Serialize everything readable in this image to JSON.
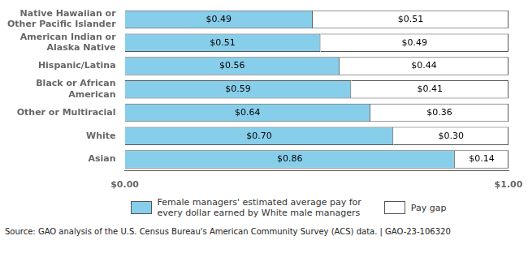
{
  "chart_data": {
    "type": "bar",
    "orientation": "horizontal",
    "stacked": true,
    "categories": [
      "Native Hawaiian or\nOther Pacific Islander",
      "American Indian or\nAlaska Native",
      "Hispanic/Latina",
      "Black or African\nAmerican",
      "Other or Multiracial",
      "White",
      "Asian"
    ],
    "series": [
      {
        "name": "Female managers' estimated average pay for\nevery dollar earned by White male managers",
        "color": "#87CEEB",
        "values": [
          0.49,
          0.51,
          0.56,
          0.59,
          0.64,
          0.7,
          0.86
        ],
        "value_labels": [
          "$0.49",
          "$0.51",
          "$0.56",
          "$0.59",
          "$0.64",
          "$0.70",
          "$0.86"
        ]
      },
      {
        "name": "Pay gap",
        "color": "#FFFFFF",
        "values": [
          0.51,
          0.49,
          0.44,
          0.41,
          0.36,
          0.3,
          0.14
        ],
        "value_labels": [
          "$0.51",
          "$0.49",
          "$0.44",
          "$0.41",
          "$0.36",
          "$0.30",
          "$0.14"
        ]
      }
    ],
    "xlim": [
      0.0,
      1.0
    ],
    "xticks": [
      {
        "value": 0.0,
        "label": "$0.00"
      },
      {
        "value": 1.0,
        "label": "$1.00"
      }
    ],
    "data_labels": true,
    "grid": false,
    "legend": "bottom",
    "annotations": [
      "Source: GAO analysis of the U.S. Census Bureau's American Community Survey (ACS) data.  |  GAO-23-106320"
    ]
  }
}
